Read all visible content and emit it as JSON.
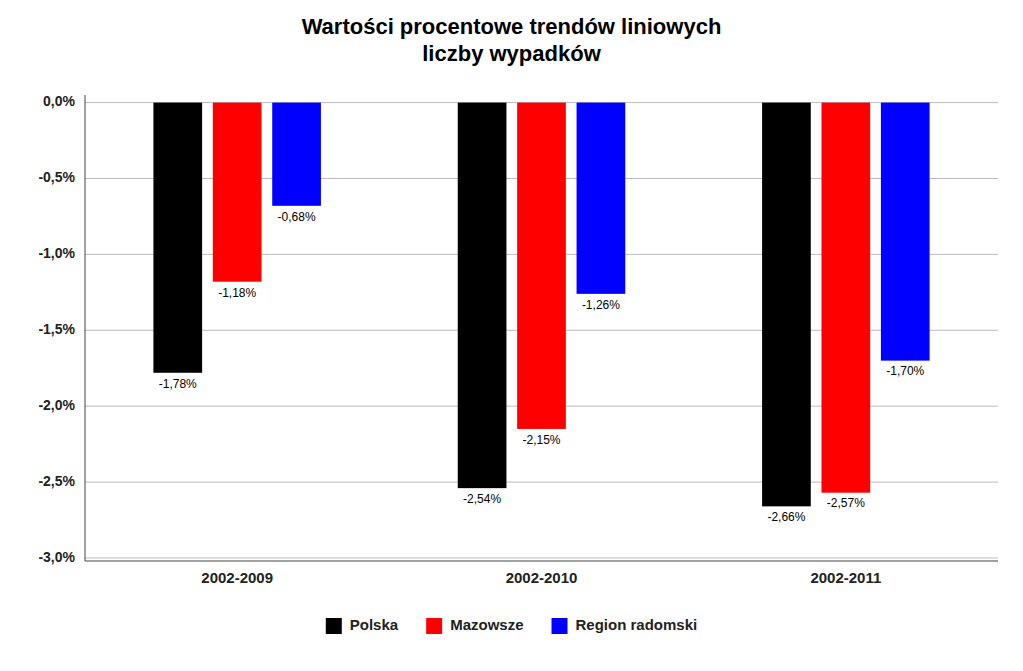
{
  "chart_data": {
    "type": "bar",
    "title": "Wartości procentowe trendów liniowych\nliczby wypadków",
    "categories": [
      "2002-2009",
      "2002-2010",
      "2002-2011"
    ],
    "series": [
      {
        "name": "Polska",
        "color": "#000000",
        "values": [
          -1.78,
          -2.54,
          -2.66
        ],
        "value_labels": [
          "-1,78%",
          "-2,54%",
          "-2,66%"
        ]
      },
      {
        "name": "Mazowsze",
        "color": "#ff0000",
        "values": [
          -1.18,
          -2.15,
          -2.57
        ],
        "value_labels": [
          "-1,18%",
          "-2,15%",
          "-2,57%"
        ]
      },
      {
        "name": "Region radomski",
        "color": "#0000ff",
        "values": [
          -0.68,
          -1.26,
          -1.7
        ],
        "value_labels": [
          "-0,68%",
          "-1,26%",
          "-1,70%"
        ]
      }
    ],
    "ylim": [
      -3.02,
      0.05
    ],
    "yticks": [
      {
        "value": 0.0,
        "label": "0,0%"
      },
      {
        "value": -0.5,
        "label": "-0,5%"
      },
      {
        "value": -1.0,
        "label": "-1,0%"
      },
      {
        "value": -1.5,
        "label": "-1,5%"
      },
      {
        "value": -2.0,
        "label": "-2,0%"
      },
      {
        "value": -2.5,
        "label": "-2,5%"
      },
      {
        "value": -3.0,
        "label": "-3,0%"
      }
    ],
    "grid": true,
    "data_labels": true,
    "legend": "bottom"
  }
}
